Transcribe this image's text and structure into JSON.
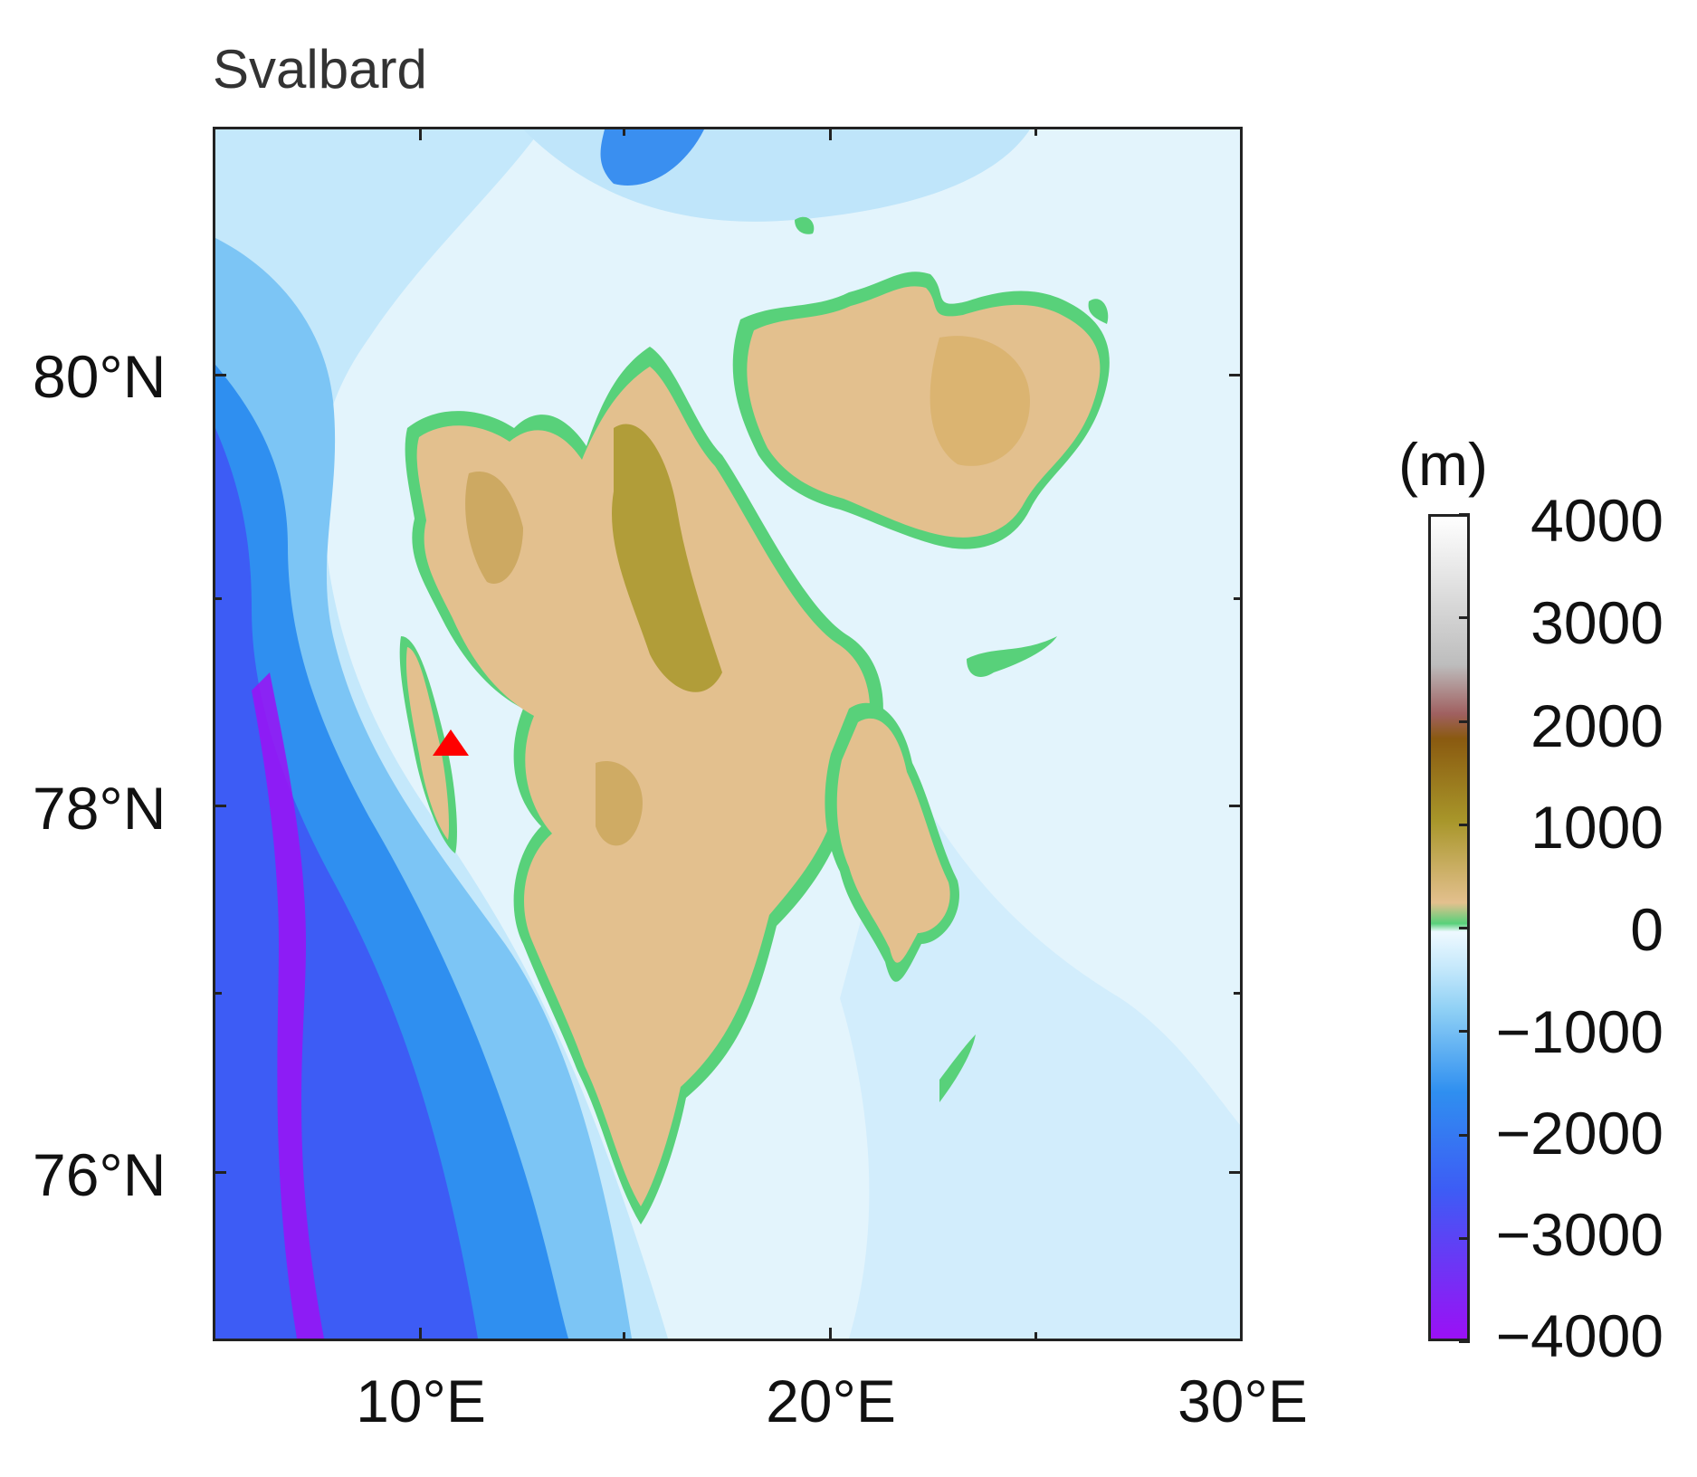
{
  "title": "Svalbard",
  "axes": {
    "lat_labels": [
      "80°N",
      "78°N",
      "76°N"
    ],
    "lon_labels": [
      "10°E",
      "20°E",
      "30°E"
    ]
  },
  "colorbar": {
    "unit": "(m)",
    "labels": [
      "4000",
      "3000",
      "2000",
      "1000",
      "0",
      "−1000",
      "−2000",
      "−3000",
      "−4000"
    ],
    "range": [
      -4000,
      4000
    ],
    "colors": {
      "deep": "#9b10f5",
      "abyss": "#3d5cf5",
      "slope": "#2f8ff0",
      "shelf_deep": "#8fd0f5",
      "shelf": "#c4e8fb",
      "shallow": "#eef9ff",
      "coast": "#58d17a",
      "lowland": "#e3c08e",
      "highland": "#a8962a",
      "peak": "#ffffff"
    }
  },
  "marker": {
    "name": "station",
    "color": "#ff0000",
    "shape": "triangle"
  }
}
